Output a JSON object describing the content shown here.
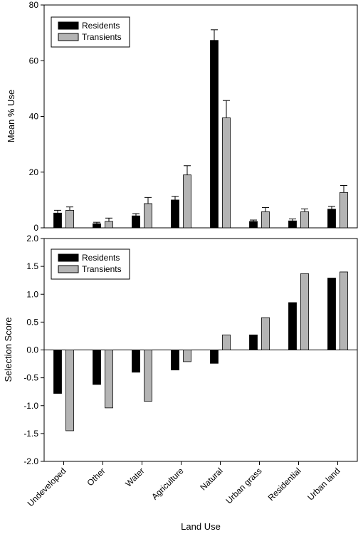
{
  "chart_data": [
    {
      "type": "bar",
      "categories": [
        "Undeveloped",
        "Other",
        "Water",
        "Agriculture",
        "Natural",
        "Urban grass",
        "Residential",
        "Urban land"
      ],
      "series": [
        {
          "name": "Residents",
          "values": [
            5.3,
            1.5,
            4.3,
            10.0,
            67.3,
            2.3,
            2.5,
            6.7
          ],
          "errors": [
            1.0,
            0.5,
            0.8,
            1.3,
            3.8,
            0.5,
            0.7,
            1.0
          ],
          "color": "#000000"
        },
        {
          "name": "Transients",
          "values": [
            6.3,
            2.3,
            8.7,
            19.0,
            39.5,
            5.8,
            5.8,
            12.7
          ],
          "errors": [
            1.2,
            1.2,
            2.2,
            3.3,
            6.2,
            1.5,
            1.0,
            2.5
          ],
          "color": "#b4b4b4"
        }
      ],
      "ylabel": "Mean % Use",
      "ylim": [
        0,
        80
      ],
      "yticks": [
        "0",
        "20",
        "40",
        "60",
        "80"
      ],
      "legend": "top-left"
    },
    {
      "type": "bar",
      "categories": [
        "Undeveloped",
        "Other",
        "Water",
        "Agriculture",
        "Natural",
        "Urban grass",
        "Residential",
        "Urban land"
      ],
      "series": [
        {
          "name": "Residents",
          "values": [
            -0.78,
            -0.62,
            -0.4,
            -0.36,
            -0.24,
            0.27,
            0.85,
            1.29
          ],
          "color": "#000000"
        },
        {
          "name": "Transients",
          "values": [
            -1.45,
            -1.04,
            -0.92,
            -0.21,
            0.27,
            0.58,
            1.37,
            1.4
          ],
          "color": "#b4b4b4"
        }
      ],
      "xlabel": "Land Use",
      "ylabel": "Selection Score",
      "ylim": [
        -2.0,
        2.0
      ],
      "yticks": [
        "-2.0",
        "-1.5",
        "-1.0",
        "-0.5",
        "0.0",
        "0.5",
        "1.0",
        "1.5",
        "2.0"
      ],
      "legend": "top-left"
    }
  ]
}
